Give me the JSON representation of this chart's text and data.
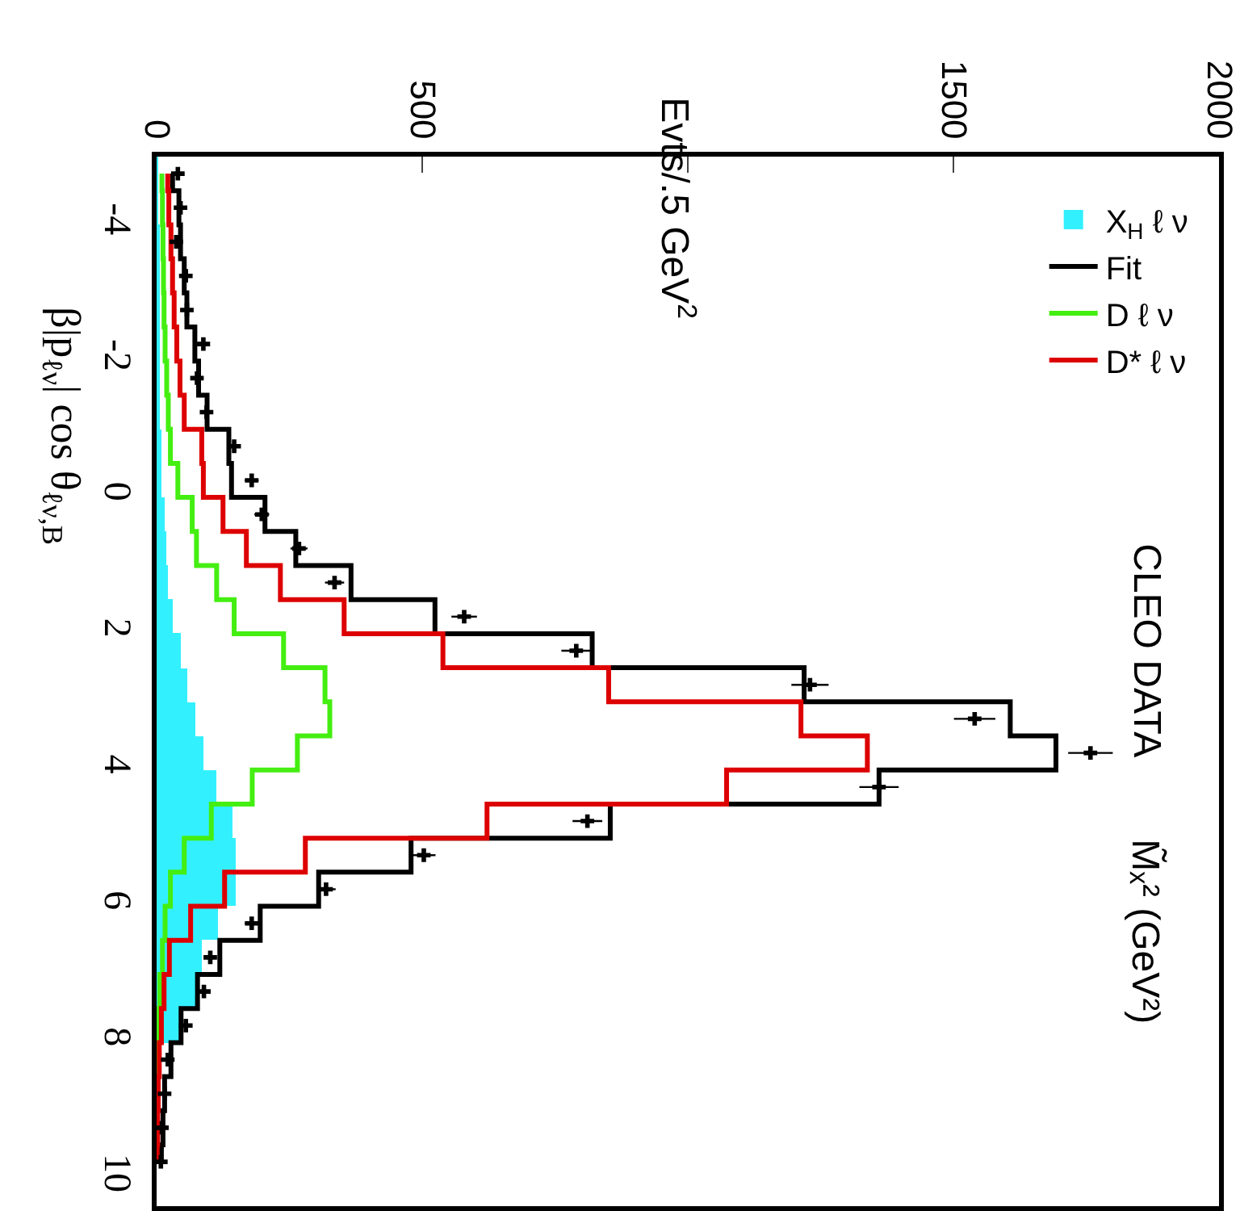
{
  "chart_data": {
    "type": "histogram",
    "orientation": "horizontal",
    "ylabel": "M̃ₓ² (GeV²)",
    "annotations": [
      "CLEO DATA",
      "β|p$_{ℓν}$| cos θ$_{ℓν,B}$",
      "Evts/.5 GeV$^{2}$"
    ],
    "bins": [
      -5,
      -4.5,
      -4,
      -3.5,
      -3,
      -2.5,
      -2,
      -1.5,
      -1,
      -0.5,
      0,
      0.5,
      1,
      1.5,
      2,
      2.5,
      3,
      3.5,
      4,
      4.5,
      5,
      5.5,
      6,
      6.5,
      7,
      7.5,
      8,
      8.5,
      9,
      9.5,
      10
    ],
    "series": [
      {
        "name": "X$_{H}$ ℓ ν",
        "color": "#33f0ff",
        "values": [
          3,
          3,
          4,
          4,
          5,
          5,
          6,
          7,
          8,
          10,
          14,
          18,
          21,
          31,
          46,
          57,
          72,
          88,
          113,
          143,
          149,
          149,
          116,
          85,
          75,
          42,
          null,
          null,
          null,
          null
        ]
      },
      {
        "name": "Fit",
        "type": "step",
        "color": "#000000",
        "x": [
          -4.75,
          -4.25,
          -3.75,
          -3.25,
          -2.75,
          -2.25,
          -1.75,
          -1.25,
          -0.75,
          -0.25,
          0.25,
          0.75,
          1.25,
          1.75,
          2.25,
          2.75,
          3.25,
          3.75,
          4.25,
          4.75,
          5.25,
          5.75,
          6.25,
          6.75,
          7.25,
          7.75,
          8.25,
          8.75,
          9.25,
          9.75
        ],
        "values": [
          30,
          42,
          45,
          52,
          57,
          72,
          79,
          95,
          136,
          141,
          204,
          262,
          366,
          524,
          820,
          1219,
          1607,
          1693,
          1360,
          854,
          479,
          305,
          195,
          119,
          77,
          46,
          27,
          15,
          12,
          9
        ]
      },
      {
        "name": "D ℓ ν",
        "type": "step",
        "color": "#44ee11",
        "x": [
          -4.75,
          -4.25,
          -3.75,
          -3.25,
          -2.75,
          -2.25,
          -1.75,
          -1.25,
          -0.75,
          -0.25,
          0.25,
          0.75,
          1.25,
          1.75,
          2.25,
          2.75,
          3.25,
          3.75,
          4.25,
          4.75,
          5.25,
          5.75,
          6.25,
          6.75,
          7.25,
          7.75,
          8.25,
          8.75
        ],
        "values": [
          10,
          11,
          12,
          13,
          14,
          16,
          19,
          22,
          26,
          40,
          67,
          75,
          113,
          146,
          239,
          317,
          326,
          265,
          180,
          103,
          52,
          26,
          16,
          11,
          6,
          3,
          2,
          1
        ]
      },
      {
        "name": "D* ℓ ν",
        "type": "step",
        "color": "#dd0000",
        "x": [
          -4.75,
          -4.25,
          -3.75,
          -3.25,
          -2.75,
          -2.25,
          -1.75,
          -1.25,
          -0.75,
          -0.25,
          0.25,
          0.75,
          1.25,
          1.75,
          2.25,
          2.75,
          3.25,
          3.75,
          4.25,
          4.75,
          5.25,
          5.75,
          6.25,
          6.75,
          7.25,
          7.75,
          8.25,
          8.75,
          9.25,
          9.75
        ],
        "values": [
          21,
          23,
          27,
          30,
          33,
          38,
          44,
          52,
          85,
          88,
          125,
          169,
          233,
          353,
          539,
          851,
          1213,
          1338,
          1073,
          622,
          280,
          128,
          64,
          24,
          14,
          9,
          5,
          3,
          2,
          1
        ]
      },
      {
        "type": "scatter",
        "color": "#000000",
        "marker": "cross",
        "x": [
          -4.75,
          -4.25,
          -3.75,
          -3.25,
          -2.75,
          -2.25,
          -1.75,
          -1.25,
          -0.75,
          -0.25,
          0.25,
          0.75,
          1.25,
          1.75,
          2.25,
          2.75,
          3.25,
          3.75,
          4.25,
          4.75,
          5.25,
          5.75,
          6.25,
          6.75,
          7.25,
          7.75,
          8.25,
          8.75,
          9.25,
          9.75
        ],
        "values": [
          40,
          45,
          37,
          55,
          57,
          88,
          76,
          94,
          146,
          179,
          198,
          268,
          335,
          579,
          790,
          1230,
          1540,
          1758,
          1360,
          811,
          503,
          319,
          179,
          101,
          89,
          55,
          21,
          15,
          10,
          8
        ],
        "errors": [
          6,
          7,
          6,
          7,
          8,
          9,
          9,
          10,
          12,
          13,
          14,
          16,
          18,
          24,
          28,
          35,
          39,
          42,
          37,
          28,
          22,
          18,
          13,
          10,
          9,
          7,
          5,
          4,
          3,
          3
        ]
      }
    ],
    "xlim": [
      0,
      2000
    ],
    "xticks": [
      0,
      500,
      {
        "value": 1000,
        "label": null
      },
      1500,
      2000
    ],
    "ylim": [
      10.4,
      -5
    ],
    "yticks": [
      -4,
      -2,
      0,
      2,
      4,
      6,
      8,
      10
    ],
    "legend": "top right"
  }
}
